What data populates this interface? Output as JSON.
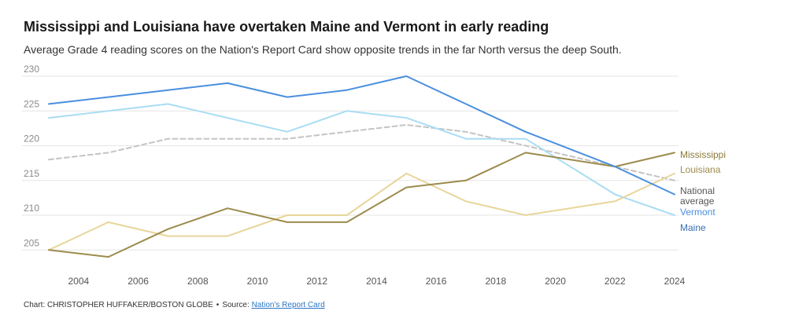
{
  "title": "Mississippi and Louisiana have overtaken Maine and Vermont in early reading",
  "subtitle": "Average Grade 4 reading scores on the Nation's Report Card show opposite trends in the far North versus the deep South.",
  "footer": {
    "credit": "Chart: CHRISTOPHER HUFFAKER/BOSTON GLOBE",
    "separator": "•",
    "source_prefix": "Source:",
    "source_link": "Nation's Report Card"
  },
  "colors": {
    "vermont": "#4a8fdf",
    "maine": "#a9ddf3",
    "national": "#c4c4c4",
    "mississippi": "#9c8b4c",
    "louisiana": "#e8d59a",
    "grid": "#e6e6e6",
    "axis_text": "#8a8a8a"
  },
  "chart_data": {
    "type": "line",
    "title": "Mississippi and Louisiana have overtaken Maine and Vermont in early reading",
    "xlabel": "",
    "ylabel": "",
    "xlim": [
      2003,
      2024
    ],
    "ylim": [
      203,
      230
    ],
    "x_ticks": [
      2004,
      2006,
      2008,
      2010,
      2012,
      2014,
      2016,
      2018,
      2020,
      2022,
      2024
    ],
    "y_ticks": [
      205,
      210,
      215,
      220,
      225,
      230
    ],
    "grid": true,
    "series": [
      {
        "name": "National average",
        "label_lines": [
          "National",
          "average"
        ],
        "key": "national",
        "dashed": true,
        "x": [
          2003,
          2005,
          2007,
          2009,
          2011,
          2013,
          2015,
          2017,
          2019,
          2022,
          2024
        ],
        "values": [
          218,
          219,
          221,
          221,
          221,
          222,
          223,
          222,
          220,
          217,
          215
        ]
      },
      {
        "name": "Maine",
        "label_lines": [
          "Maine"
        ],
        "key": "maine",
        "dashed": false,
        "x": [
          2003,
          2005,
          2007,
          2009,
          2011,
          2013,
          2015,
          2017,
          2019,
          2022,
          2024
        ],
        "values": [
          224,
          225,
          226,
          224,
          222,
          225,
          224,
          221,
          221,
          213,
          210
        ]
      },
      {
        "name": "Louisiana",
        "label_lines": [
          "Louisiana"
        ],
        "key": "louisiana",
        "dashed": false,
        "x": [
          2003,
          2005,
          2007,
          2009,
          2011,
          2013,
          2015,
          2017,
          2019,
          2022,
          2024
        ],
        "values": [
          205,
          209,
          207,
          207,
          210,
          210,
          216,
          212,
          210,
          212,
          216
        ]
      },
      {
        "name": "Mississippi",
        "label_lines": [
          "Mississippi"
        ],
        "key": "mississippi",
        "dashed": false,
        "x": [
          2003,
          2005,
          2007,
          2009,
          2011,
          2013,
          2015,
          2017,
          2019,
          2022,
          2024
        ],
        "values": [
          205,
          204,
          208,
          211,
          209,
          209,
          214,
          215,
          219,
          217,
          219
        ]
      },
      {
        "name": "Vermont",
        "label_lines": [
          "Vermont"
        ],
        "key": "vermont",
        "dashed": false,
        "x": [
          2003,
          2005,
          2007,
          2009,
          2011,
          2013,
          2015,
          2017,
          2019,
          2022,
          2024
        ],
        "values": [
          226,
          227,
          228,
          229,
          227,
          228,
          230,
          226,
          222,
          217,
          213
        ]
      }
    ]
  }
}
